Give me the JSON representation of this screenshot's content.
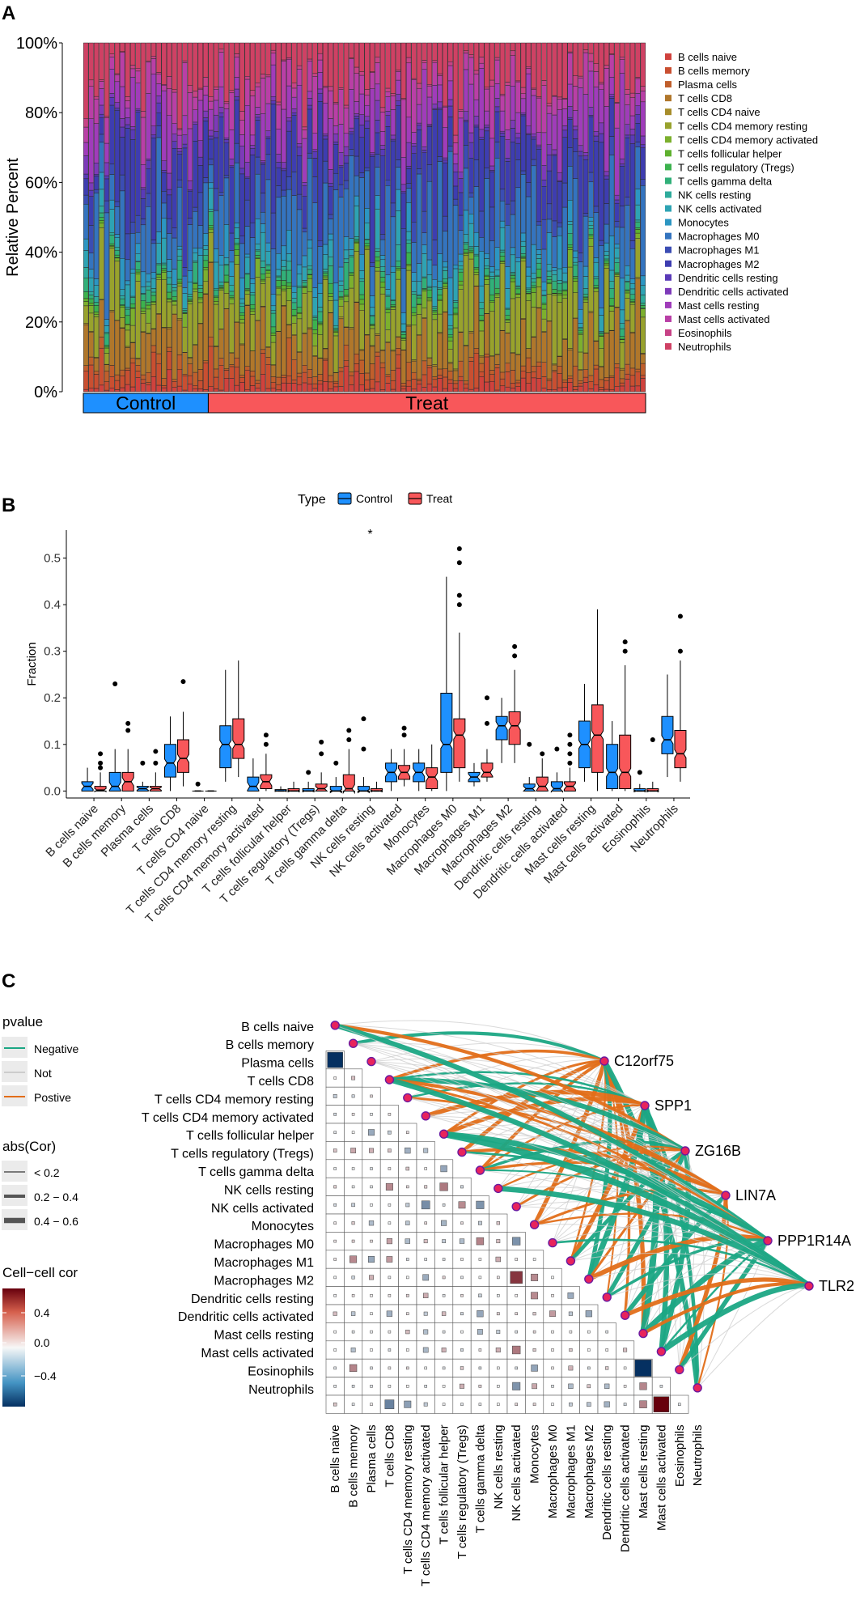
{
  "chart_data": [
    {
      "panel": "A",
      "type": "bar",
      "stacked": true,
      "title": "",
      "xlabel": "",
      "ylabel": "Relative Percent",
      "ylim": [
        0,
        1
      ],
      "yticks": [
        "0%",
        "20%",
        "40%",
        "60%",
        "80%",
        "100%"
      ],
      "n_samples": 108,
      "groups": [
        {
          "name": "Control",
          "count": 24,
          "color": "#1e90ff"
        },
        {
          "name": "Treat",
          "count": 84,
          "color": "#f8575a"
        }
      ],
      "legend": [
        "B cells naive",
        "B cells memory",
        "Plasma cells",
        "T cells CD8",
        "T cells CD4 naive",
        "T cells CD4 memory resting",
        "T cells CD4 memory activated",
        "T cells follicular helper",
        "T cells regulatory (Tregs)",
        "T cells gamma delta",
        "NK cells resting",
        "NK cells activated",
        "Monocytes",
        "Macrophages M0",
        "Macrophages M1",
        "Macrophages M2",
        "Dendritic cells resting",
        "Dendritic cells activated",
        "Mast cells resting",
        "Mast cells activated",
        "Eosinophils",
        "Neutrophils"
      ],
      "colors": [
        "#d0423d",
        "#c94f31",
        "#c05f2c",
        "#b0772b",
        "#a78d2b",
        "#98a22d",
        "#7cb02e",
        "#5fb12f",
        "#3cb24e",
        "#31b079",
        "#2fab9c",
        "#2ea3b3",
        "#2c96c2",
        "#3474bf",
        "#3b4db4",
        "#3e3db0",
        "#5a3ab8",
        "#7d3ab9",
        "#a03cba",
        "#b93fa6",
        "#c74286",
        "#cf4164"
      ],
      "mean_fractions": [
        0.02,
        0.03,
        0.02,
        0.08,
        0.002,
        0.11,
        0.02,
        0.005,
        0.01,
        0.02,
        0.01,
        0.04,
        0.04,
        0.13,
        0.04,
        0.14,
        0.015,
        0.02,
        0.1,
        0.06,
        0.01,
        0.1
      ]
    },
    {
      "panel": "B",
      "type": "box",
      "title": "",
      "xlabel": "",
      "ylabel": "Fraction",
      "ylim": [
        -0.015,
        0.56
      ],
      "yticks": [
        0.0,
        0.1,
        0.2,
        0.3,
        0.4,
        0.5
      ],
      "legend_title": "Type",
      "series_names": [
        "Control",
        "Treat"
      ],
      "series_colors": [
        "#1e90ff",
        "#f8575a"
      ],
      "annotation": "*",
      "annotation_category": "NK cells resting",
      "categories": [
        "B cells naive",
        "B cells memory",
        "Plasma cells",
        "T cells CD8",
        "T cells CD4 naive",
        "T cells CD4 memory resting",
        "T cells CD4 memory activated",
        "T cells follicular helper",
        "T cells regulatory (Tregs)",
        "T cells gamma delta",
        "NK cells resting",
        "NK cells activated",
        "Monocytes",
        "Macrophages M0",
        "Macrophages M1",
        "Macrophages M2",
        "Dendritic cells resting",
        "Dendritic cells activated",
        "Mast cells resting",
        "Mast cells activated",
        "Eosinophils",
        "Neutrophils"
      ],
      "series": [
        {
          "name": "Control",
          "boxes": [
            [
              0,
              0,
              0.01,
              0.02,
              0.05,
              []
            ],
            [
              0,
              0,
              0.01,
              0.04,
              0.09,
              [
                0.23
              ]
            ],
            [
              0,
              0,
              0.005,
              0.01,
              0.02,
              [
                0.06
              ]
            ],
            [
              0,
              0.03,
              0.06,
              0.1,
              0.16,
              []
            ],
            [
              0,
              0,
              0,
              0,
              0,
              [
                0.015
              ]
            ],
            [
              0.02,
              0.05,
              0.1,
              0.14,
              0.26,
              []
            ],
            [
              0,
              0,
              0.01,
              0.03,
              0.07,
              []
            ],
            [
              0,
              0,
              0,
              0.003,
              0.01,
              []
            ],
            [
              0,
              0,
              0,
              0.005,
              0.02,
              [
                0.04
              ]
            ],
            [
              0,
              0,
              0,
              0.01,
              0.03,
              [
                0.06
              ]
            ],
            [
              0,
              0,
              0,
              0.01,
              0.03,
              [
                0.09,
                0.155
              ]
            ],
            [
              0,
              0.02,
              0.04,
              0.06,
              0.09,
              []
            ],
            [
              0,
              0.02,
              0.04,
              0.06,
              0.09,
              []
            ],
            [
              0,
              0.04,
              0.1,
              0.21,
              0.46,
              []
            ],
            [
              0.01,
              0.02,
              0.03,
              0.04,
              0.06,
              []
            ],
            [
              0.06,
              0.11,
              0.14,
              0.16,
              0.2,
              []
            ],
            [
              0,
              0,
              0.005,
              0.015,
              0.03,
              [
                0.1
              ]
            ],
            [
              0,
              0,
              0.005,
              0.02,
              0.04,
              [
                0.09
              ]
            ],
            [
              0.02,
              0.05,
              0.1,
              0.15,
              0.23,
              []
            ],
            [
              0,
              0.005,
              0.04,
              0.1,
              0.15,
              []
            ],
            [
              0,
              0,
              0,
              0.005,
              0.015,
              [
                0.04
              ]
            ],
            [
              0.03,
              0.08,
              0.11,
              0.16,
              0.25,
              []
            ]
          ]
        },
        {
          "name": "Treat",
          "boxes": [
            [
              0,
              0,
              0.002,
              0.01,
              0.04,
              [
                0.05,
                0.06,
                0.08
              ]
            ],
            [
              0,
              0,
              0.02,
              0.04,
              0.09,
              [
                0.13,
                0.145
              ]
            ],
            [
              0,
              0,
              0.005,
              0.01,
              0.04,
              [
                0.06,
                0.085
              ]
            ],
            [
              0.01,
              0.04,
              0.07,
              0.11,
              0.17,
              [
                0.235
              ]
            ],
            [
              0,
              0,
              0,
              0,
              0,
              []
            ],
            [
              0.03,
              0.07,
              0.1,
              0.155,
              0.28,
              []
            ],
            [
              0,
              0.005,
              0.02,
              0.035,
              0.08,
              [
                0.1,
                0.12
              ]
            ],
            [
              0,
              0,
              0,
              0.005,
              0.02,
              []
            ],
            [
              0,
              0,
              0.005,
              0.015,
              0.04,
              [
                0.08,
                0.105
              ]
            ],
            [
              0,
              0,
              0.005,
              0.035,
              0.09,
              [
                0.11,
                0.13
              ]
            ],
            [
              0,
              0,
              0,
              0.005,
              0.02,
              []
            ],
            [
              0.01,
              0.025,
              0.04,
              0.055,
              0.09,
              [
                0.12,
                0.135
              ]
            ],
            [
              0,
              0.005,
              0.03,
              0.05,
              0.1,
              []
            ],
            [
              0.02,
              0.05,
              0.12,
              0.155,
              0.34,
              [
                0.4,
                0.42,
                0.49,
                0.52
              ]
            ],
            [
              0.02,
              0.03,
              0.04,
              0.06,
              0.09,
              [
                0.145,
                0.2
              ]
            ],
            [
              0.06,
              0.1,
              0.14,
              0.17,
              0.26,
              [
                0.29,
                0.31
              ]
            ],
            [
              0,
              0,
              0.01,
              0.03,
              0.07,
              [
                0.08
              ]
            ],
            [
              0,
              0,
              0.01,
              0.02,
              0.05,
              [
                0.06,
                0.08,
                0.1,
                0.12
              ]
            ],
            [
              0,
              0.04,
              0.12,
              0.185,
              0.39,
              []
            ],
            [
              0,
              0.005,
              0.04,
              0.12,
              0.27,
              [
                0.3,
                0.32
              ]
            ],
            [
              0,
              0,
              0,
              0.005,
              0.02,
              [
                0.11
              ]
            ],
            [
              0.02,
              0.05,
              0.08,
              0.13,
              0.28,
              [
                0.3,
                0.375
              ]
            ]
          ]
        }
      ]
    },
    {
      "panel": "C",
      "type": "heatmap",
      "title": "",
      "cells": [
        "B cells naive",
        "B cells memory",
        "Plasma cells",
        "T cells CD8",
        "T cells CD4 memory resting",
        "T cells CD4 memory activated",
        "T cells follicular helper",
        "T cells regulatory (Tregs)",
        "T cells gamma delta",
        "NK cells resting",
        "NK cells activated",
        "Monocytes",
        "Macrophages M0",
        "Macrophages M1",
        "Macrophages M2",
        "Dendritic cells resting",
        "Dendritic cells activated",
        "Mast cells resting",
        "Mast cells activated",
        "Eosinophils",
        "Neutrophils"
      ],
      "genes": [
        "C12orf75",
        "SPP1",
        "ZG16B",
        "LIN7A",
        "PPP1R14A",
        "TLR2"
      ],
      "highlighted_correlations": [
        {
          "row": "B cells memory",
          "col": "B cells naive",
          "r": -0.7
        },
        {
          "row": "Mast cells activated",
          "col": "Mast cells resting",
          "r": -0.75
        },
        {
          "row": "Neutrophils",
          "col": "Mast cells activated",
          "r": 0.7
        },
        {
          "row": "Macrophages M1",
          "col": "NK cells activated",
          "r": 0.55
        }
      ],
      "legend": {
        "pvalue_title": "pvalue",
        "pvalue_items": [
          {
            "label": "Negative",
            "color": "#1ba784"
          },
          {
            "label": "Not",
            "color": "#cccccc"
          },
          {
            "label": "Postive",
            "color": "#e26e19"
          }
        ],
        "abs_title": "abs(Cor)",
        "abs_items": [
          "< 0.2",
          "0.2 − 0.4",
          "0.4 − 0.6"
        ],
        "color_title": "Cell−cell cor",
        "color_ticks": [
          "0.4",
          "0.0",
          "−0.4"
        ]
      }
    }
  ],
  "panel_labels": {
    "a": "A",
    "b": "B",
    "c": "C"
  }
}
